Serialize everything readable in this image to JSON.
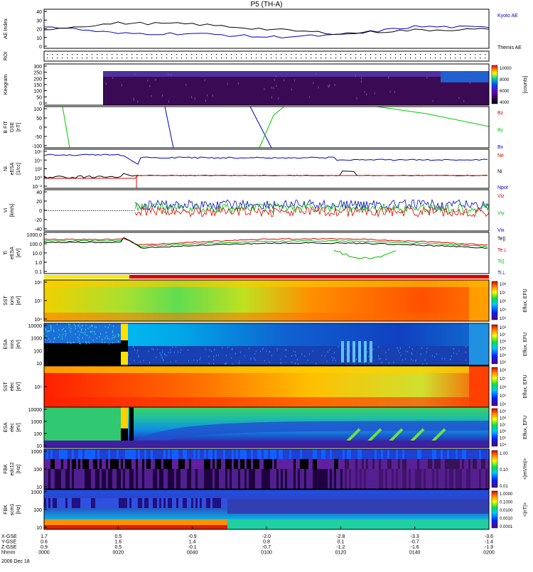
{
  "title": "P5 (TH-A)",
  "colors": {
    "kyoto": "#0000cc",
    "themis": "#000000",
    "bz": "#cc0000",
    "by": "#00cc00",
    "bx": "#0000cc",
    "red": "#dd0000",
    "green": "#00bb00",
    "blue": "#0000cc",
    "black": "#000000"
  },
  "panels": [
    {
      "id": "ae",
      "ylabel": [
        "AE Index"
      ],
      "ticks": [
        "40",
        "30",
        "20",
        "10",
        "0"
      ],
      "legend": [
        {
          "text": "Kyoto AE",
          "color": "#0000cc"
        },
        {
          "text": "Themis AE",
          "color": "#000000"
        }
      ]
    },
    {
      "id": "roi",
      "ylabel": [
        "ROI"
      ],
      "ticks": [],
      "legend": []
    },
    {
      "id": "keogram",
      "ylabel": [
        "Keogram"
      ],
      "ticks": [
        "300",
        "250",
        "200",
        "150",
        "100",
        "50",
        "0"
      ],
      "legend": [],
      "colorbar": {
        "ticks": [
          "10000",
          "8000",
          "6000",
          "4000"
        ],
        "label": "[counts]"
      }
    },
    {
      "id": "bfgm",
      "ylabel": [
        "B FIT",
        "GSE",
        "[nT]"
      ],
      "ticks": [
        "100",
        "50",
        "0",
        "-50",
        "-100"
      ],
      "legend": [
        {
          "text": "Bz",
          "color": "#cc0000"
        },
        {
          "text": "By",
          "color": "#00cc00"
        },
        {
          "text": "Bx",
          "color": "#0000cc"
        }
      ]
    },
    {
      "id": "density",
      "ylabel": [
        "Ni",
        "eESA",
        "[1/cc]"
      ],
      "ticks": [
        "10⁶",
        "10⁴",
        "10²",
        "10⁰",
        "10⁻²"
      ],
      "legend": [
        {
          "text": "Ne",
          "color": "#cc0000"
        },
        {
          "text": "Ni",
          "color": "#000000"
        },
        {
          "text": "Npot",
          "color": "#0000cc"
        }
      ]
    },
    {
      "id": "velocity",
      "ylabel": [
        "Vi",
        "[km/s]"
      ],
      "ticks": [
        "40",
        "20",
        "0",
        "-20",
        "-40"
      ],
      "legend": [
        {
          "text": "Viz",
          "color": "#cc0000"
        },
        {
          "text": "Viy",
          "color": "#00bb00"
        },
        {
          "text": "Vix",
          "color": "#0000cc"
        }
      ]
    },
    {
      "id": "temperature",
      "ylabel": [
        "Ti",
        "eESA",
        "[eV]"
      ],
      "ticks": [
        "1000.0",
        "100.0",
        "10.0",
        "1.0",
        "0.1"
      ],
      "legend": [
        {
          "text": "Te||",
          "color": "#000000"
        },
        {
          "text": "Te⊥",
          "color": "#cc0000"
        },
        {
          "text": "Ti||",
          "color": "#00bb00"
        },
        {
          "text": "Ti⊥",
          "color": "#0000cc"
        }
      ]
    },
    {
      "id": "sst_i",
      "ylabel": [
        "SST",
        "ions",
        "[eV]"
      ],
      "ticks": [
        "10⁶",
        "10⁵",
        "10⁴"
      ],
      "legend": [],
      "colorbar": {
        "ticks": [
          "10⁸",
          "10⁷",
          "10⁶",
          "10⁵",
          "10⁴"
        ],
        "label": "Eflux, EFU"
      }
    },
    {
      "id": "esa_i",
      "ylabel": [
        "ESA",
        "ions",
        "[eV]"
      ],
      "ticks": [
        "10000",
        "1000",
        "100",
        "10"
      ],
      "legend": [],
      "colorbar": {
        "ticks": [
          "10⁸",
          "10⁷",
          "10⁶",
          "10⁵",
          "10⁴",
          "10³"
        ],
        "label": "Eflux, EFU"
      }
    },
    {
      "id": "sst_e",
      "ylabel": [
        "SST",
        "elec",
        "[eV]"
      ],
      "ticks": [
        "10⁵"
      ],
      "legend": [],
      "colorbar": {
        "ticks": [
          "10⁸",
          "10⁷",
          "10⁶",
          "10⁵",
          "10⁴"
        ],
        "label": "Eflux, EFU"
      }
    },
    {
      "id": "esa_e",
      "ylabel": [
        "ESA",
        "elec",
        "[eV]"
      ],
      "ticks": [
        "10000",
        "1000",
        "100",
        "10"
      ],
      "legend": [],
      "colorbar": {
        "ticks": [
          "10⁹",
          "10⁸",
          "10⁷",
          "10⁶",
          "10⁵",
          "10⁴"
        ],
        "label": "Eflux, EFU"
      }
    },
    {
      "id": "fbk_e",
      "ylabel": [
        "FBK",
        "edc12",
        "[Hz]"
      ],
      "ticks": [
        "1000",
        "100",
        "10"
      ],
      "legend": [],
      "colorbar": {
        "ticks": [
          "1.00",
          "0.10",
          "0.01"
        ],
        "label": "<|mV/m|>"
      }
    },
    {
      "id": "fbk_b",
      "ylabel": [
        "FBK",
        "scm1",
        "[Hz]"
      ],
      "ticks": [
        "1000",
        "100",
        "10"
      ],
      "legend": [],
      "colorbar": {
        "ticks": [
          "1.0000",
          "0.1000",
          "0.0100",
          "0.0010",
          "0.0001"
        ],
        "label": "<|nT|>"
      }
    }
  ],
  "footer": {
    "rows": [
      {
        "label": "X-GSE",
        "values": [
          "1.7",
          "0.5",
          "-0.9",
          "-2.0",
          "-2.8",
          "-3.3",
          "-3.6"
        ]
      },
      {
        "label": "Y-GSE",
        "values": [
          "0.6",
          "1.6",
          "1.4",
          "0.8",
          "0.1",
          "-0.7",
          "-1.4"
        ]
      },
      {
        "label": "Z-GSE",
        "values": [
          "0.9",
          "0.5",
          "-0.1",
          "-0.7",
          "-1.2",
          "-1.6",
          "-1.9"
        ]
      },
      {
        "label": "hhmm",
        "values": [
          "0000",
          "0020",
          "0040",
          "0100",
          "0120",
          "0140",
          "0200"
        ]
      }
    ],
    "date": "2006 Dec 18"
  },
  "chart_data": {
    "type": "line",
    "title": "P5 (TH-A)",
    "x": [
      "0000",
      "0020",
      "0040",
      "0100",
      "0120",
      "0140",
      "0200"
    ],
    "xlabel": "hhmm",
    "series": [
      {
        "name": "Kyoto AE",
        "panel": "AE Index",
        "values": [
          26,
          17,
          17,
          13,
          15,
          25,
          24
        ]
      },
      {
        "name": "Themis AE",
        "panel": "AE Index",
        "values": [
          22,
          29,
          28,
          22,
          17,
          21,
          22
        ]
      },
      {
        "name": "Bz",
        "panel": "B FIT",
        "values": [
          null,
          null,
          null,
          null,
          null,
          null,
          null
        ]
      },
      {
        "name": "By",
        "panel": "B FIT",
        "values": [
          null,
          null,
          null,
          null,
          null,
          null,
          null
        ]
      },
      {
        "name": "Bx",
        "panel": "B FIT",
        "values": [
          null,
          null,
          null,
          null,
          null,
          null,
          null
        ]
      },
      {
        "name": "Npot",
        "panel": "Ni",
        "values": [
          100000,
          30000,
          30000,
          30000,
          15000,
          10000,
          10000
        ]
      },
      {
        "name": "Ni",
        "panel": "Ni",
        "values": [
          0.5,
          1,
          1,
          1,
          1,
          1,
          1
        ]
      },
      {
        "name": "Ne",
        "panel": "Ni",
        "values": [
          1,
          1,
          1,
          1,
          1,
          1,
          1
        ]
      }
    ]
  }
}
